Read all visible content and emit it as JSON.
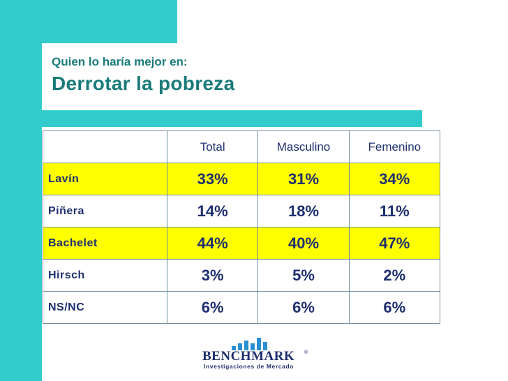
{
  "slide": {
    "subtitle": "Quien lo haría mejor en:",
    "title": "Derrotar la pobreza"
  },
  "table": {
    "headers": [
      "",
      "Total",
      "Masculino",
      "Femenino"
    ],
    "rows": [
      {
        "name": "Lavín",
        "total": "33%",
        "masculino": "31%",
        "femenino": "34%"
      },
      {
        "name": "Piñera",
        "total": "14%",
        "masculino": "18%",
        "femenino": "11%"
      },
      {
        "name": "Bachelet",
        "total": "44%",
        "masculino": "40%",
        "femenino": "47%"
      },
      {
        "name": "Hirsch",
        "total": "3%",
        "masculino": "5%",
        "femenino": "2%"
      },
      {
        "name": "NS/NC",
        "total": "6%",
        "masculino": "6%",
        "femenino": "6%"
      }
    ]
  },
  "logo": {
    "name": "BENCHMARK",
    "mark": "®",
    "tagline": "Investigaciones de Mercado",
    "icon": "bar-chart-logo-icon"
  },
  "colors": {
    "accent": "#33cccc",
    "title_text": "#1a7a7a",
    "body_text": "#1e2f6e",
    "highlight_row": "#ffff00"
  }
}
